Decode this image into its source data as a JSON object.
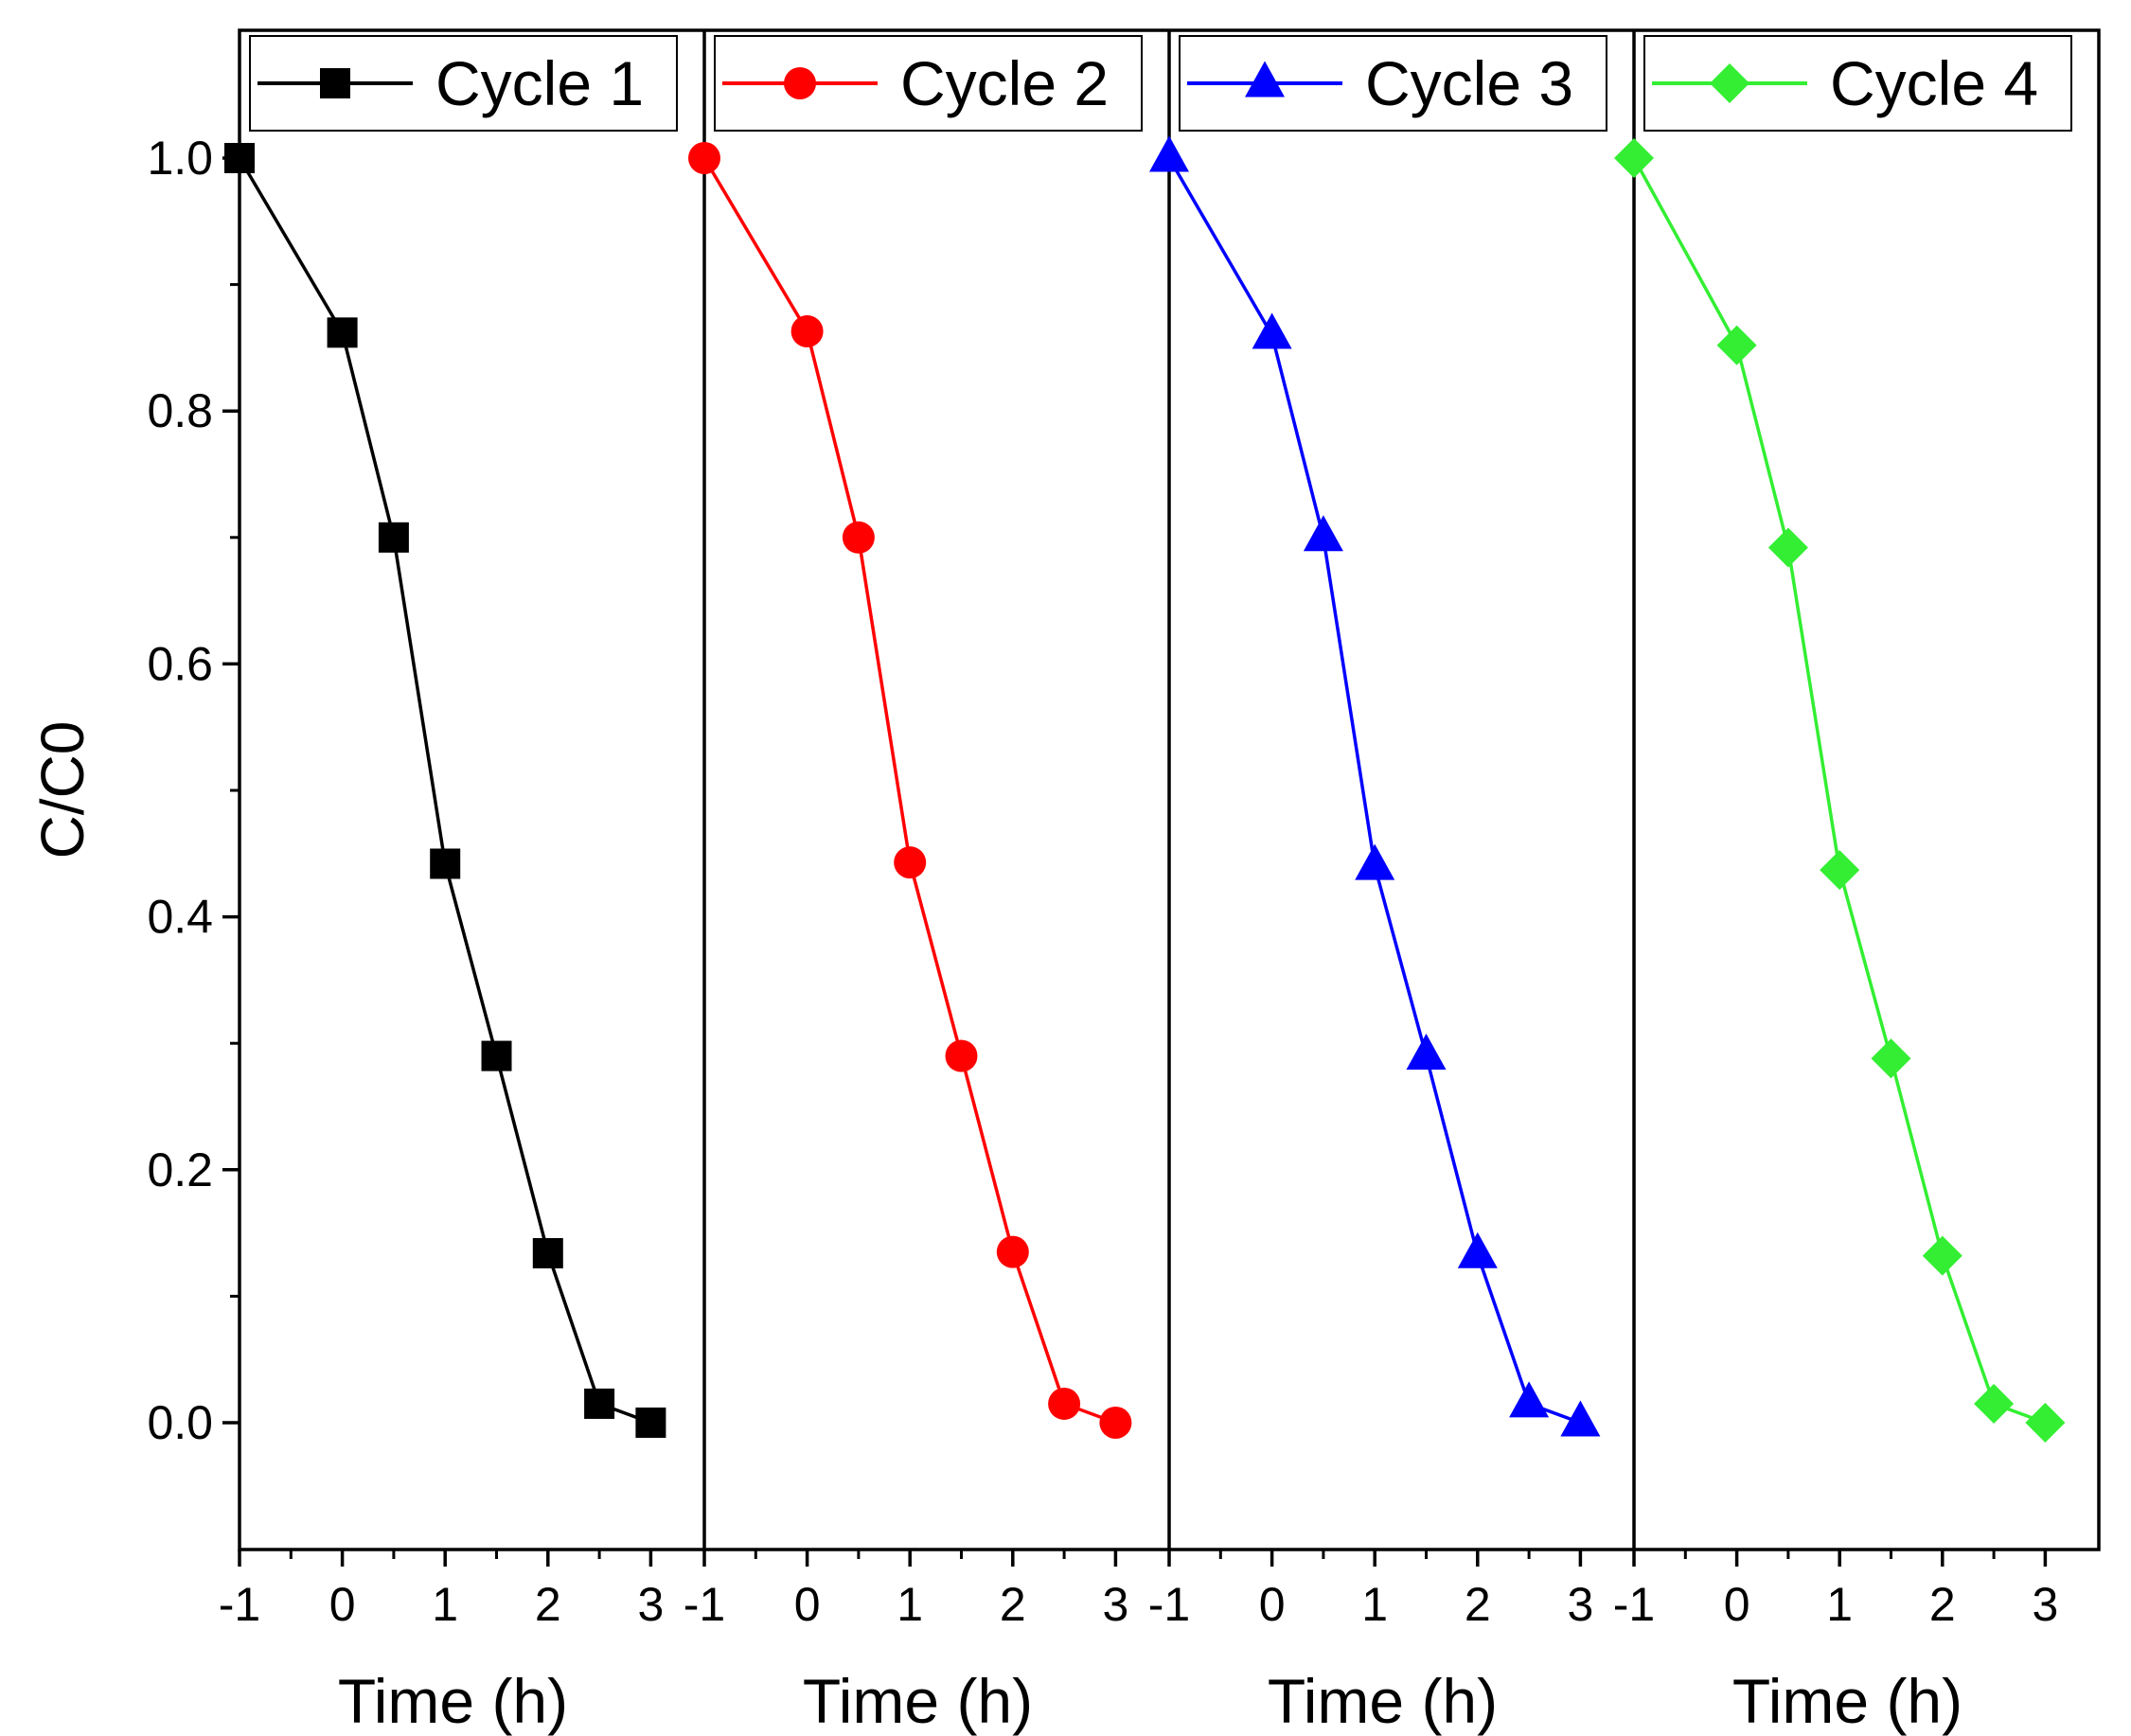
{
  "chart_data": {
    "type": "line",
    "ylabel": "C/C0",
    "ylim": [
      -0.1,
      1.1
    ],
    "yticks": [
      0.0,
      0.2,
      0.4,
      0.6,
      0.8,
      1.0
    ],
    "ytick_labels": [
      "0.0",
      "0.2",
      "0.4",
      "0.6",
      "0.8",
      "1.0"
    ],
    "xlim": [
      -1,
      3.5
    ],
    "xticks": [
      -1,
      0,
      1,
      2,
      3
    ],
    "xtick_labels": [
      "-1",
      "0",
      "1",
      "2",
      "3"
    ],
    "xlabel": "Time (h)",
    "grid": false,
    "legend_position": "top",
    "x": [
      -1,
      0,
      0.5,
      1,
      1.5,
      2,
      2.5,
      3
    ],
    "series": [
      {
        "name": "Cycle 1",
        "color": "#000000",
        "marker": "square",
        "values": [
          1.0,
          0.862,
          0.7,
          0.442,
          0.29,
          0.134,
          0.015,
          0.0
        ]
      },
      {
        "name": "Cycle 2",
        "color": "#ff0000",
        "marker": "circle",
        "values": [
          1.0,
          0.863,
          0.7,
          0.443,
          0.29,
          0.135,
          0.015,
          0.0
        ]
      },
      {
        "name": "Cycle 3",
        "color": "#0000ff",
        "marker": "triangle",
        "values": [
          1.0,
          0.86,
          0.7,
          0.44,
          0.29,
          0.133,
          0.015,
          0.0
        ]
      },
      {
        "name": "Cycle 4",
        "color": "#33ee33",
        "marker": "diamond",
        "values": [
          1.0,
          0.852,
          0.692,
          0.437,
          0.288,
          0.132,
          0.015,
          0.0
        ]
      }
    ]
  }
}
